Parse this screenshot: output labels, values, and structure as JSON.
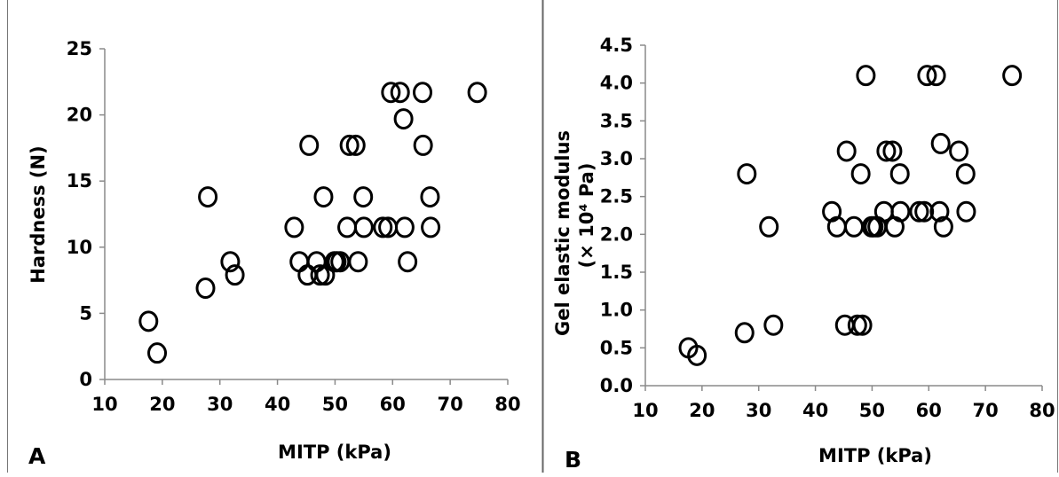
{
  "chart_data": [
    {
      "panel": "A",
      "type": "scatter",
      "title": "",
      "xlabel": "MITP (kPa)",
      "ylabel": "Hardness (N)",
      "xlim": [
        10,
        80
      ],
      "ylim": [
        0,
        25
      ],
      "xticks": [
        "10",
        "20",
        "30",
        "40",
        "50",
        "60",
        "70",
        "80"
      ],
      "yticks": [
        "0",
        "5",
        "10",
        "15",
        "20",
        "25"
      ],
      "grid": false,
      "legend": "none",
      "marker": "open-circle",
      "points": [
        {
          "x": 17.6,
          "y": 4.4
        },
        {
          "x": 19.1,
          "y": 2.0
        },
        {
          "x": 27.5,
          "y": 6.9
        },
        {
          "x": 27.9,
          "y": 13.8
        },
        {
          "x": 31.8,
          "y": 8.9
        },
        {
          "x": 32.6,
          "y": 7.9
        },
        {
          "x": 42.9,
          "y": 11.5
        },
        {
          "x": 43.8,
          "y": 8.9
        },
        {
          "x": 45.2,
          "y": 7.9
        },
        {
          "x": 45.5,
          "y": 17.7
        },
        {
          "x": 46.8,
          "y": 8.9
        },
        {
          "x": 47.4,
          "y": 7.9
        },
        {
          "x": 48.0,
          "y": 13.8
        },
        {
          "x": 48.3,
          "y": 7.9
        },
        {
          "x": 49.9,
          "y": 8.9
        },
        {
          "x": 50.3,
          "y": 8.9
        },
        {
          "x": 50.9,
          "y": 8.9
        },
        {
          "x": 52.1,
          "y": 11.5
        },
        {
          "x": 52.5,
          "y": 17.7
        },
        {
          "x": 53.6,
          "y": 17.7
        },
        {
          "x": 54.0,
          "y": 8.9
        },
        {
          "x": 54.9,
          "y": 13.8
        },
        {
          "x": 55.0,
          "y": 11.5
        },
        {
          "x": 58.3,
          "y": 11.5
        },
        {
          "x": 59.2,
          "y": 11.5
        },
        {
          "x": 59.7,
          "y": 21.7
        },
        {
          "x": 61.3,
          "y": 21.7
        },
        {
          "x": 61.9,
          "y": 19.7
        },
        {
          "x": 62.1,
          "y": 11.5
        },
        {
          "x": 62.6,
          "y": 8.9
        },
        {
          "x": 65.2,
          "y": 21.7
        },
        {
          "x": 65.3,
          "y": 17.7
        },
        {
          "x": 66.5,
          "y": 13.8
        },
        {
          "x": 66.6,
          "y": 11.5
        },
        {
          "x": 74.7,
          "y": 21.7
        }
      ]
    },
    {
      "panel": "B",
      "type": "scatter",
      "title": "",
      "xlabel": "MITP (kPa)",
      "ylabel_line1": "Gel elastic modulus",
      "ylabel_line2": "(× 10⁴ Pa)",
      "xlim": [
        10,
        80
      ],
      "ylim": [
        0,
        4.5
      ],
      "xticks": [
        "10",
        "20",
        "30",
        "40",
        "50",
        "60",
        "70",
        "80"
      ],
      "yticks": [
        "0.0",
        "0.5",
        "1.0",
        "1.5",
        "2.0",
        "2.5",
        "3.0",
        "3.5",
        "4.0",
        "4.5"
      ],
      "grid": false,
      "legend": "none",
      "marker": "open-circle",
      "points": [
        {
          "x": 17.6,
          "y": 0.5
        },
        {
          "x": 19.1,
          "y": 0.4
        },
        {
          "x": 27.5,
          "y": 0.7
        },
        {
          "x": 27.9,
          "y": 2.8
        },
        {
          "x": 31.8,
          "y": 2.1
        },
        {
          "x": 32.6,
          "y": 0.8
        },
        {
          "x": 42.9,
          "y": 2.3
        },
        {
          "x": 43.8,
          "y": 2.1
        },
        {
          "x": 45.2,
          "y": 0.8
        },
        {
          "x": 45.5,
          "y": 3.1
        },
        {
          "x": 46.8,
          "y": 2.1
        },
        {
          "x": 47.4,
          "y": 0.8
        },
        {
          "x": 48.0,
          "y": 2.8
        },
        {
          "x": 48.3,
          "y": 0.8
        },
        {
          "x": 48.9,
          "y": 4.1
        },
        {
          "x": 49.9,
          "y": 2.1
        },
        {
          "x": 50.3,
          "y": 2.1
        },
        {
          "x": 50.9,
          "y": 2.1
        },
        {
          "x": 52.1,
          "y": 2.3
        },
        {
          "x": 52.5,
          "y": 3.1
        },
        {
          "x": 53.6,
          "y": 3.1
        },
        {
          "x": 54.0,
          "y": 2.1
        },
        {
          "x": 54.9,
          "y": 2.8
        },
        {
          "x": 55.0,
          "y": 2.3
        },
        {
          "x": 58.3,
          "y": 2.3
        },
        {
          "x": 59.2,
          "y": 2.3
        },
        {
          "x": 59.7,
          "y": 4.1
        },
        {
          "x": 61.3,
          "y": 4.1
        },
        {
          "x": 61.9,
          "y": 2.3
        },
        {
          "x": 62.1,
          "y": 3.2
        },
        {
          "x": 62.6,
          "y": 2.1
        },
        {
          "x": 65.3,
          "y": 3.1
        },
        {
          "x": 66.5,
          "y": 2.8
        },
        {
          "x": 66.6,
          "y": 2.3
        },
        {
          "x": 74.7,
          "y": 4.1
        }
      ]
    }
  ]
}
